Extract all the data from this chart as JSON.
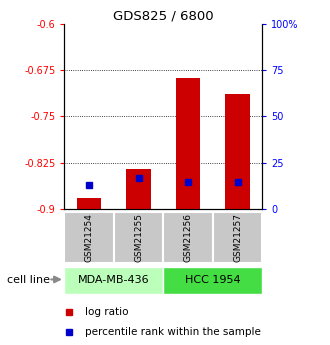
{
  "title": "GDS825 / 6800",
  "samples": [
    "GSM21254",
    "GSM21255",
    "GSM21256",
    "GSM21257"
  ],
  "groups": [
    {
      "name": "MDA-MB-436",
      "samples": [
        0,
        1
      ],
      "color": "#bbffbb"
    },
    {
      "name": "HCC 1954",
      "samples": [
        2,
        3
      ],
      "color": "#44dd44"
    }
  ],
  "baseline": -0.9,
  "log_ratio_values": [
    -0.883,
    -0.836,
    -0.687,
    -0.713
  ],
  "percentile_values": [
    0.13,
    0.165,
    0.145,
    0.145
  ],
  "ylim_left": [
    -0.9,
    -0.6
  ],
  "yticks_left": [
    -0.9,
    -0.825,
    -0.75,
    -0.675,
    -0.6
  ],
  "ytick_labels_left": [
    "-0.9",
    "-0.825",
    "-0.75",
    "-0.675",
    "-0.6"
  ],
  "ylim_right": [
    0,
    100
  ],
  "yticks_right": [
    0,
    25,
    50,
    75,
    100
  ],
  "ytick_labels_right": [
    "0",
    "25",
    "50",
    "75",
    "100%"
  ],
  "bar_width": 0.5,
  "red_color": "#cc0000",
  "blue_color": "#0000cc",
  "label_area_color": "#c8c8c8",
  "cell_line_label": "cell line",
  "legend_red": "log ratio",
  "legend_blue": "percentile rank within the sample"
}
